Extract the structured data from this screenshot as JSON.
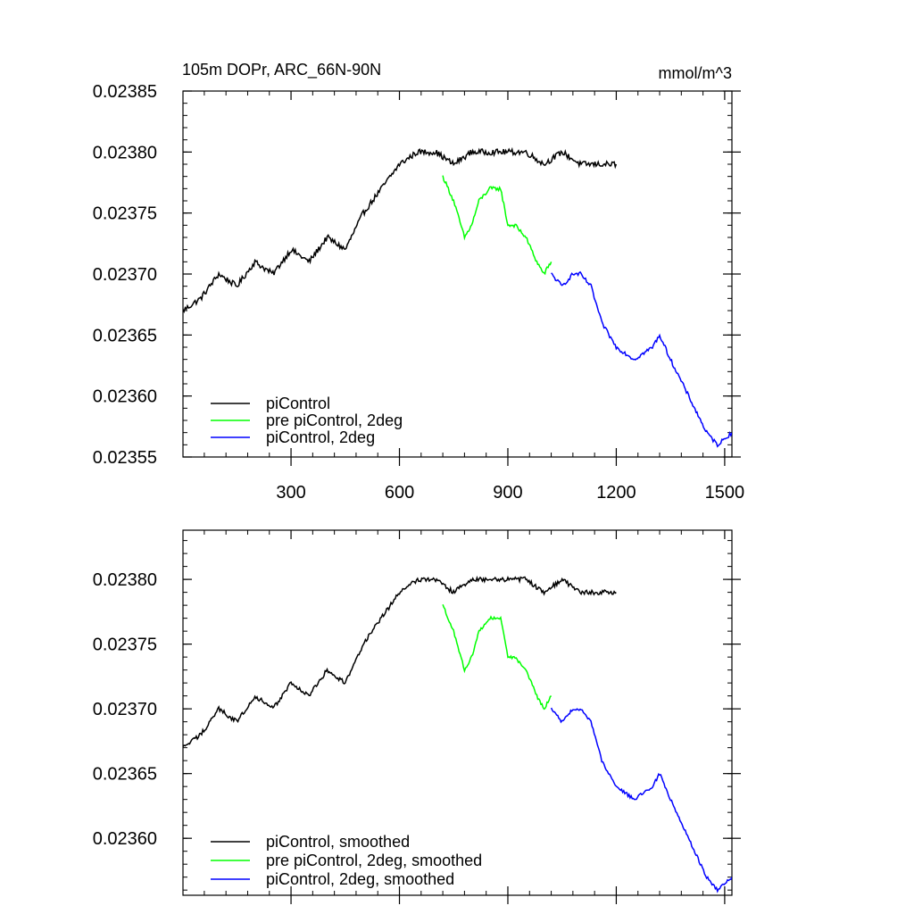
{
  "chart_data": [
    {
      "type": "line",
      "title": "105m DOPr, ARC_66N-90N",
      "units": "mmol/m^3",
      "xlim": [
        1,
        1520
      ],
      "ylim": [
        0.02355,
        0.02385
      ],
      "xticks": [
        300,
        600,
        900,
        1200,
        1500
      ],
      "xtick_labels": [
        "300",
        "600",
        "900",
        "1200",
        "1500"
      ],
      "yticks": [
        0.02355,
        0.0236,
        0.02365,
        0.0237,
        0.02375,
        0.0238,
        0.02385
      ],
      "ytick_labels": [
        "0.02355",
        "0.02360",
        "0.02365",
        "0.02370",
        "0.02375",
        "0.02380",
        "0.02385"
      ],
      "legend_position": "bottom-left",
      "series": [
        {
          "name": "piControl",
          "color": "#000000",
          "x": [
            1,
            50,
            100,
            150,
            200,
            250,
            300,
            350,
            400,
            450,
            500,
            550,
            600,
            650,
            700,
            750,
            800,
            850,
            900,
            950,
            1000,
            1050,
            1100,
            1150,
            1200
          ],
          "y": [
            0.02367,
            0.02368,
            0.0237,
            0.02369,
            0.02371,
            0.0237,
            0.02372,
            0.02371,
            0.02373,
            0.02372,
            0.02375,
            0.02377,
            0.02379,
            0.0238,
            0.0238,
            0.02379,
            0.0238,
            0.0238,
            0.0238,
            0.0238,
            0.02379,
            0.0238,
            0.02379,
            0.02379,
            0.02379
          ]
        },
        {
          "name": "pre piControl, 2deg",
          "color": "#00ff00",
          "x": [
            720,
            750,
            780,
            800,
            820,
            850,
            880,
            900,
            920,
            950,
            980,
            1000,
            1020
          ],
          "y": [
            0.02378,
            0.02376,
            0.02373,
            0.02374,
            0.02376,
            0.02377,
            0.02377,
            0.02374,
            0.02374,
            0.02373,
            0.02371,
            0.0237,
            0.02371
          ]
        },
        {
          "name": "piControl, 2deg",
          "color": "#0000ff",
          "x": [
            1020,
            1050,
            1080,
            1100,
            1130,
            1160,
            1200,
            1250,
            1300,
            1320,
            1350,
            1400,
            1450,
            1480,
            1520
          ],
          "y": [
            0.0237,
            0.02369,
            0.0237,
            0.0237,
            0.02369,
            0.02366,
            0.02364,
            0.02363,
            0.02364,
            0.02365,
            0.02363,
            0.0236,
            0.02357,
            0.02356,
            0.02357
          ]
        }
      ]
    },
    {
      "type": "line",
      "title": "",
      "units": "",
      "xlim": [
        1,
        1520
      ],
      "ylim": [
        0.023556,
        0.023838
      ],
      "xticks": [
        300,
        600,
        900,
        1200,
        1500
      ],
      "xtick_labels": [
        "",
        "",
        "",
        "",
        ""
      ],
      "yticks": [
        0.0236,
        0.02365,
        0.0237,
        0.02375,
        0.0238
      ],
      "ytick_labels": [
        "0.02360",
        "0.02365",
        "0.02370",
        "0.02375",
        "0.02380"
      ],
      "legend_position": "bottom-left",
      "series": [
        {
          "name": "piControl, smoothed",
          "color": "#000000",
          "x": [
            1,
            50,
            100,
            150,
            200,
            250,
            300,
            350,
            400,
            450,
            500,
            550,
            600,
            650,
            700,
            750,
            800,
            850,
            900,
            950,
            1000,
            1050,
            1100,
            1150,
            1200
          ],
          "y": [
            0.02367,
            0.02368,
            0.0237,
            0.02369,
            0.02371,
            0.0237,
            0.02372,
            0.02371,
            0.02373,
            0.02372,
            0.02375,
            0.02377,
            0.02379,
            0.0238,
            0.0238,
            0.02379,
            0.0238,
            0.0238,
            0.0238,
            0.0238,
            0.02379,
            0.0238,
            0.02379,
            0.02379,
            0.02379
          ]
        },
        {
          "name": "pre piControl, 2deg, smoothed",
          "color": "#00ff00",
          "x": [
            720,
            750,
            780,
            800,
            820,
            850,
            880,
            900,
            920,
            950,
            980,
            1000,
            1020
          ],
          "y": [
            0.02378,
            0.02376,
            0.02373,
            0.02374,
            0.02376,
            0.02377,
            0.02377,
            0.02374,
            0.02374,
            0.02373,
            0.02371,
            0.0237,
            0.02371
          ]
        },
        {
          "name": "piControl, 2deg, smoothed",
          "color": "#0000ff",
          "x": [
            1020,
            1050,
            1080,
            1100,
            1130,
            1160,
            1200,
            1250,
            1300,
            1320,
            1350,
            1400,
            1450,
            1480,
            1520
          ],
          "y": [
            0.0237,
            0.02369,
            0.0237,
            0.0237,
            0.02369,
            0.02366,
            0.02364,
            0.02363,
            0.02364,
            0.02365,
            0.02363,
            0.0236,
            0.02357,
            0.02356,
            0.02357
          ]
        }
      ]
    }
  ]
}
